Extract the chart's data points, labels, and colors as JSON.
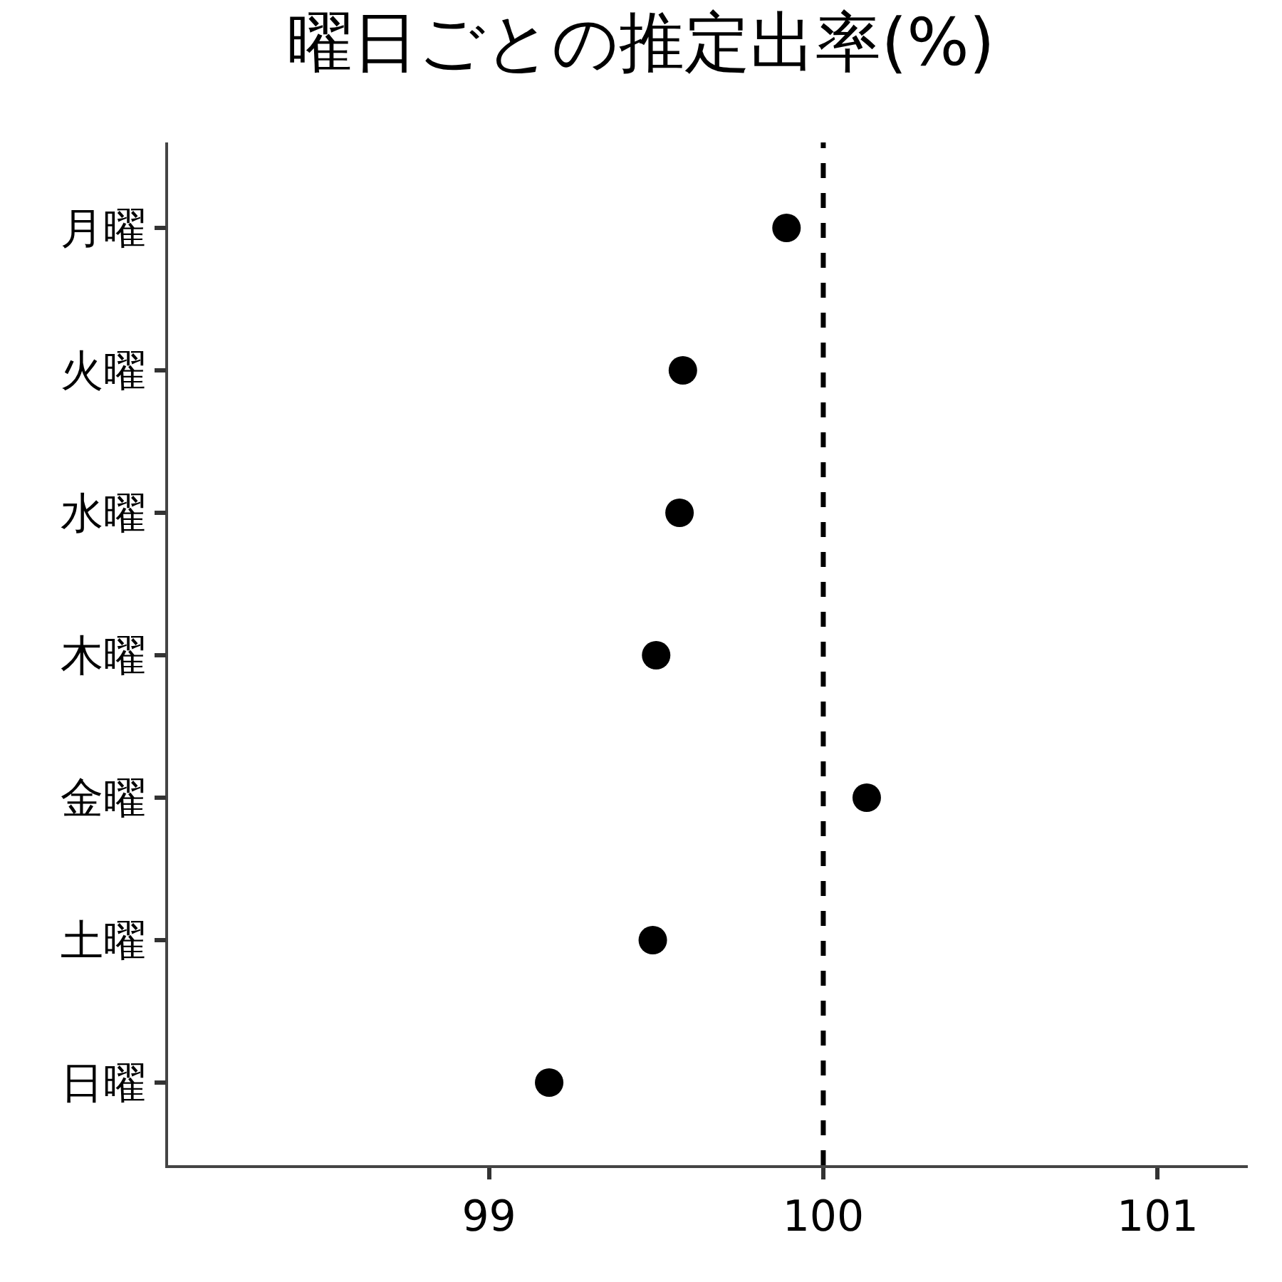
{
  "chart_data": {
    "type": "scatter",
    "title": "曜日ごとの推定出率(%)",
    "categories": [
      "月曜",
      "火曜",
      "水曜",
      "木曜",
      "金曜",
      "土曜",
      "日曜"
    ],
    "orientation": "horizontal",
    "series": [
      {
        "color": "#000000",
        "values": [
          99.89,
          99.58,
          99.57,
          99.5,
          100.13,
          99.49,
          99.18
        ]
      }
    ],
    "xlim": [
      98.04,
      101.27
    ],
    "xticks": [
      99,
      100,
      101
    ],
    "ref_lines": [
      {
        "axis": "x",
        "value": 100,
        "color": "#000000",
        "line_style": "dashed"
      }
    ],
    "legend": false,
    "marker": "circle"
  }
}
